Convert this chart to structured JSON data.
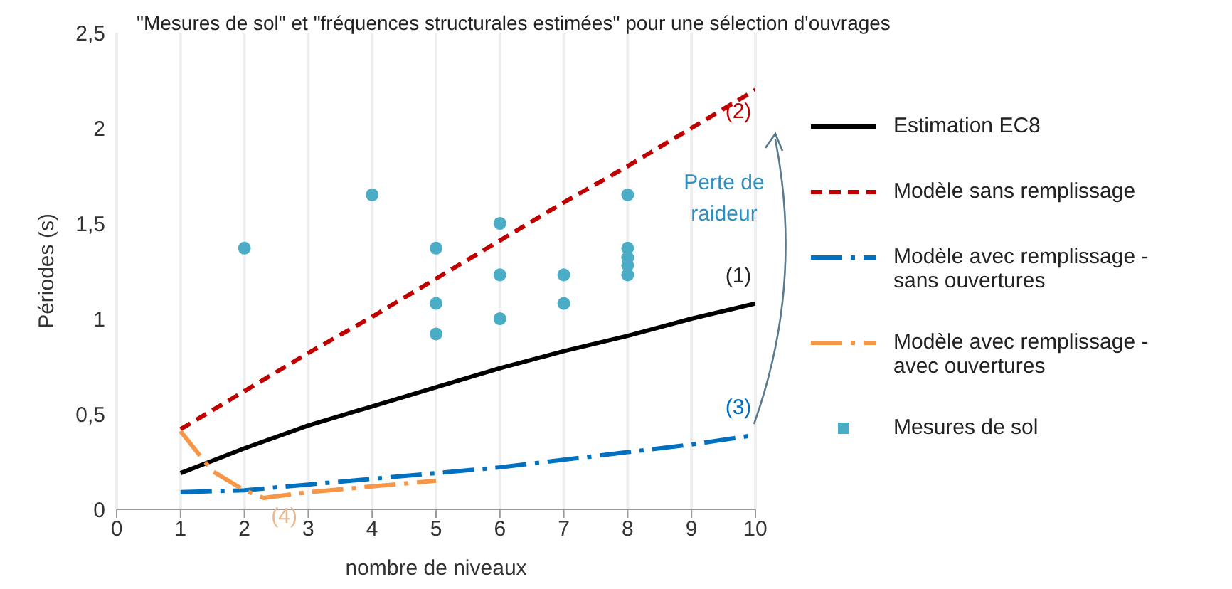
{
  "chart_data": {
    "type": "line",
    "title": "\"Mesures de sol\" et \"fréquences structurales estimées\" pour une sélection d'ouvrages",
    "xlabel": "nombre de niveaux",
    "ylabel": "Périodes (s)",
    "xlim": [
      0,
      10
    ],
    "xticks": [
      0,
      1,
      2,
      3,
      4,
      5,
      6,
      7,
      8,
      9,
      10
    ],
    "ylim": [
      0,
      2.5
    ],
    "yticks": [
      0,
      {
        "value": 0.5,
        "label": "0,5"
      },
      1,
      {
        "value": 1.5,
        "label": "1,5"
      },
      2,
      {
        "value": 2.5,
        "label": "2,5"
      }
    ],
    "grid": "x",
    "legend": "right",
    "marker": "none",
    "series": [
      {
        "name": "Estimation EC8",
        "color": "#000000",
        "line_style": "solid",
        "x": [
          1,
          2,
          3,
          4,
          5,
          6,
          7,
          8,
          9,
          10
        ],
        "values": [
          0.19,
          0.32,
          0.44,
          0.54,
          0.64,
          0.74,
          0.83,
          0.91,
          1.0,
          1.08
        ]
      },
      {
        "name": "Modèle sans remplissage",
        "color": "#c00000",
        "line_style": "dashed",
        "x": [
          1,
          2,
          3,
          4,
          5,
          6,
          7,
          8,
          9,
          10
        ],
        "values": [
          0.42,
          0.62,
          0.82,
          1.01,
          1.21,
          1.41,
          1.61,
          1.8,
          2.0,
          2.2
        ]
      },
      {
        "name": "Modèle avec remplissage - sans ouvertures",
        "color": "#0070c0",
        "line_style": "dashdot",
        "x": [
          1,
          2,
          3,
          4,
          5,
          6,
          7,
          8,
          9,
          10
        ],
        "values": [
          0.09,
          0.1,
          0.13,
          0.16,
          0.19,
          0.22,
          0.26,
          0.3,
          0.34,
          0.39
        ]
      },
      {
        "name": "Modèle avec remplissage - avec ouvertures",
        "color": "#f79646",
        "line_style": "dashdot",
        "x": [
          1,
          1.5,
          2,
          2.3,
          3,
          4,
          5
        ],
        "values": [
          0.41,
          0.2,
          0.1,
          0.06,
          0.09,
          0.12,
          0.15
        ]
      },
      {
        "name": "Mesures de sol",
        "type": "scatter",
        "color": "#4bacc6",
        "marker": "circle",
        "x": [
          2,
          4,
          5,
          5,
          5,
          6,
          6,
          6,
          7,
          7,
          8,
          8,
          8,
          8,
          8
        ],
        "values": [
          1.37,
          1.65,
          1.37,
          1.08,
          0.92,
          1.5,
          1.23,
          1.0,
          1.23,
          1.08,
          1.65,
          1.37,
          1.32,
          1.28,
          1.23
        ]
      }
    ],
    "annotations": [
      "(1)",
      "(2)",
      "(3)",
      "(4)",
      "Perte de raideur"
    ]
  }
}
